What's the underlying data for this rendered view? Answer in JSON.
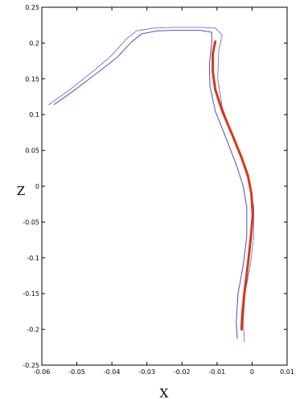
{
  "chart_data": {
    "type": "line",
    "title": "",
    "xlabel": "X",
    "ylabel": "Z",
    "xlim": [
      -0.06,
      0.01
    ],
    "ylim": [
      -0.25,
      0.25
    ],
    "grid": false,
    "legend": "none",
    "xticks": [
      -0.06,
      -0.05,
      -0.04,
      -0.03,
      -0.02,
      -0.01,
      0,
      0.01
    ],
    "xtick_labels": [
      "-0.06",
      "-0.05",
      "-0.04",
      "-0.03",
      "-0.02",
      "-0.01",
      "0",
      "0.01"
    ],
    "yticks": [
      0.25,
      0.2,
      0.15,
      0.1,
      0.05,
      0,
      -0.05,
      -0.1,
      -0.15,
      -0.2,
      -0.25
    ],
    "ytick_labels": [
      "0.25",
      "0.2",
      "0.15",
      "0.1",
      "0.05",
      "0",
      "-0.05",
      "-0.1",
      "-0.15",
      "-0.2",
      "-0.25"
    ],
    "series": [
      {
        "color": "#4a4ad0",
        "style": "dotted",
        "points": [
          [
            -0.058,
            0.114
          ],
          [
            -0.052,
            0.135
          ],
          [
            -0.045,
            0.162
          ],
          [
            -0.04,
            0.183
          ],
          [
            -0.036,
            0.205
          ],
          [
            -0.033,
            0.217
          ],
          [
            -0.028,
            0.221
          ],
          [
            -0.022,
            0.222
          ],
          [
            -0.015,
            0.222
          ],
          [
            -0.0105,
            0.221
          ],
          [
            -0.0085,
            0.211
          ],
          [
            -0.0095,
            0.19
          ],
          [
            -0.0098,
            0.15
          ],
          [
            -0.0085,
            0.11
          ],
          [
            -0.0055,
            0.07
          ],
          [
            -0.0025,
            0.03
          ],
          [
            -0.0005,
            0.0
          ],
          [
            0.0005,
            -0.03
          ],
          [
            0.0005,
            -0.07
          ],
          [
            -0.0005,
            -0.11
          ],
          [
            -0.002,
            -0.15
          ],
          [
            -0.0025,
            -0.19
          ],
          [
            -0.0022,
            -0.218
          ]
        ]
      },
      {
        "color": "#3a3ac0",
        "style": "solid",
        "points": [
          [
            -0.0565,
            0.114
          ],
          [
            -0.051,
            0.133
          ],
          [
            -0.044,
            0.159
          ],
          [
            -0.0385,
            0.18
          ],
          [
            -0.0345,
            0.201
          ],
          [
            -0.0315,
            0.213
          ],
          [
            -0.027,
            0.217
          ],
          [
            -0.021,
            0.218
          ],
          [
            -0.015,
            0.218
          ],
          [
            -0.0115,
            0.215
          ],
          [
            -0.0115,
            0.2
          ],
          [
            -0.0122,
            0.17
          ],
          [
            -0.012,
            0.14
          ],
          [
            -0.0105,
            0.105
          ],
          [
            -0.0075,
            0.068
          ],
          [
            -0.0045,
            0.03
          ],
          [
            -0.0025,
            0.0
          ],
          [
            -0.0015,
            -0.03
          ],
          [
            -0.0015,
            -0.07
          ],
          [
            -0.0025,
            -0.11
          ],
          [
            -0.004,
            -0.15
          ],
          [
            -0.0045,
            -0.19
          ],
          [
            -0.0042,
            -0.213
          ]
        ]
      },
      {
        "color": "#d43a1a",
        "style": "solid",
        "points": [
          [
            -0.0105,
            0.202
          ],
          [
            -0.0112,
            0.185
          ],
          [
            -0.0112,
            0.16
          ],
          [
            -0.0105,
            0.135
          ],
          [
            -0.0085,
            0.105
          ],
          [
            -0.0055,
            0.07
          ],
          [
            -0.003,
            0.04
          ],
          [
            -0.0012,
            0.015
          ],
          [
            -0.0002,
            -0.01
          ],
          [
            0.0002,
            -0.04
          ],
          [
            -0.0003,
            -0.07
          ],
          [
            -0.0012,
            -0.11
          ],
          [
            -0.0022,
            -0.15
          ],
          [
            -0.0028,
            -0.18
          ],
          [
            -0.003,
            -0.2
          ]
        ]
      }
    ]
  }
}
